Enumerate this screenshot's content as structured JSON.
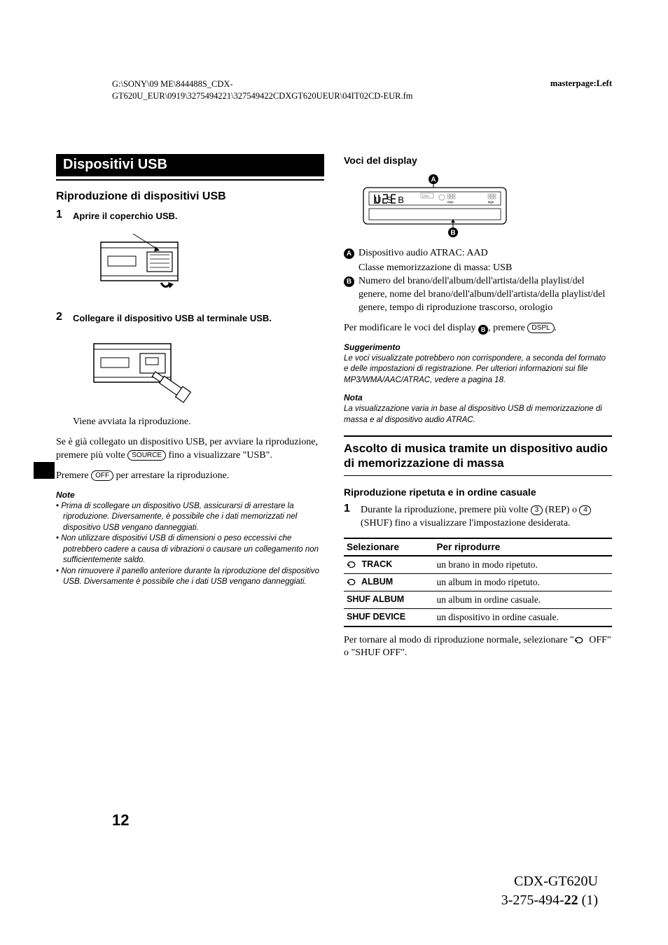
{
  "header": {
    "path_line1": "G:\\SONY\\09 ME\\844488S_CDX-",
    "path_line2": "GT620U_EUR\\0919\\3275494221\\327549422CDXGT620UEUR\\04IT02CD-EUR.fm",
    "masterpage": "masterpage:Left"
  },
  "col1": {
    "section_title": "Dispositivi USB",
    "sub1": "Riproduzione di dispositivi USB",
    "step1_num": "1",
    "step1_text": "Aprire il coperchio USB.",
    "step2_num": "2",
    "step2_text": "Collegare il dispositivo USB al terminale USB.",
    "p_started": "Viene avviata la riproduzione.",
    "p_already1": "Se è già collegato un dispositivo USB, per avviare la riproduzione, premere più volte ",
    "p_already_btn": "SOURCE",
    "p_already2": " fino a visualizzare \"USB\".",
    "p_stop1": "Premere ",
    "p_stop_btn": "OFF",
    "p_stop2": " per arrestare la riproduzione.",
    "note_hdr": "Note",
    "notes": [
      "Prima di scollegare un dispositivo USB, assicurarsi di arrestare la riproduzione. Diversamente, è possibile che i dati memorizzati nel dispositivo USB vengano danneggiati.",
      "Non utilizzare dispositivi USB di dimensioni o peso eccessivi che potrebbero cadere a causa di vibrazioni o causare un collegamento non sufficientemente saldo.",
      "Non rimuovere il panello anteriore durante la riproduzione del dispositivo USB. Diversamente è possibile che i dati USB vengano danneggiati."
    ]
  },
  "col2": {
    "display_hdr": "Voci del display",
    "letterA": "A",
    "letterB": "B",
    "a_text": "Dispositivo audio ATRAC: AAD",
    "a_sub": "Classe memorizzazione di massa: USB",
    "b_text": "Numero del brano/dell'album/dell'artista/della playlist/del genere, nome del brano/dell'album/dell'artista/della playlist/del genere, tempo di riproduzione trascorso, orologio",
    "modify1": "Per modificare le voci del display ",
    "modify2": ", premere ",
    "modify_btn": "DSPL",
    "modify3": ".",
    "sugg_hdr": "Suggerimento",
    "sugg_text": "Le voci visualizzate potrebbero non corrispondere, a seconda del formato e delle impostazioni di registrazione. Per ulteriori informazioni sui file MP3/WMA/AAC/ATRAC, vedere a pagina 18.",
    "nota_hdr": "Nota",
    "nota_text": "La visualizzazione varia in base al dispositivo USB di memorizzazione di massa e al dispositivo audio ATRAC.",
    "h2": "Ascolto di musica tramite un dispositivo audio di memorizzazione di massa",
    "sub3": "Riproduzione ripetuta e in ordine casuale",
    "step1_num": "1",
    "step1a": "Durante la riproduzione, premere più volte ",
    "n3": "3",
    "step1b": " (REP) o ",
    "n4": "4",
    "step1c": " (SHUF) fino a visualizzare l'impostazione desiderata.",
    "table": {
      "th1": "Selezionare",
      "th2": "Per riprodurre",
      "rows": [
        {
          "mode": "TRACK",
          "icon": true,
          "desc": "un brano in modo ripetuto."
        },
        {
          "mode": "ALBUM",
          "icon": true,
          "desc": "un album in modo ripetuto."
        },
        {
          "mode": "SHUF ALBUM",
          "icon": false,
          "desc": "un album in ordine casuale."
        },
        {
          "mode": "SHUF DEVICE",
          "icon": false,
          "desc": "un dispositivo in ordine casuale."
        }
      ]
    },
    "return1": "Per tornare al modo di riproduzione normale, selezionare \"",
    "return2": " OFF\" o \"SHUF OFF\"."
  },
  "page_num": "12",
  "footer": {
    "model": "CDX-GT620U",
    "doc1": "3-275-494-",
    "doc_bold": "22",
    "doc2": " (1)"
  },
  "colors": {
    "black": "#000000",
    "white": "#ffffff",
    "gray_line": "#888888"
  }
}
